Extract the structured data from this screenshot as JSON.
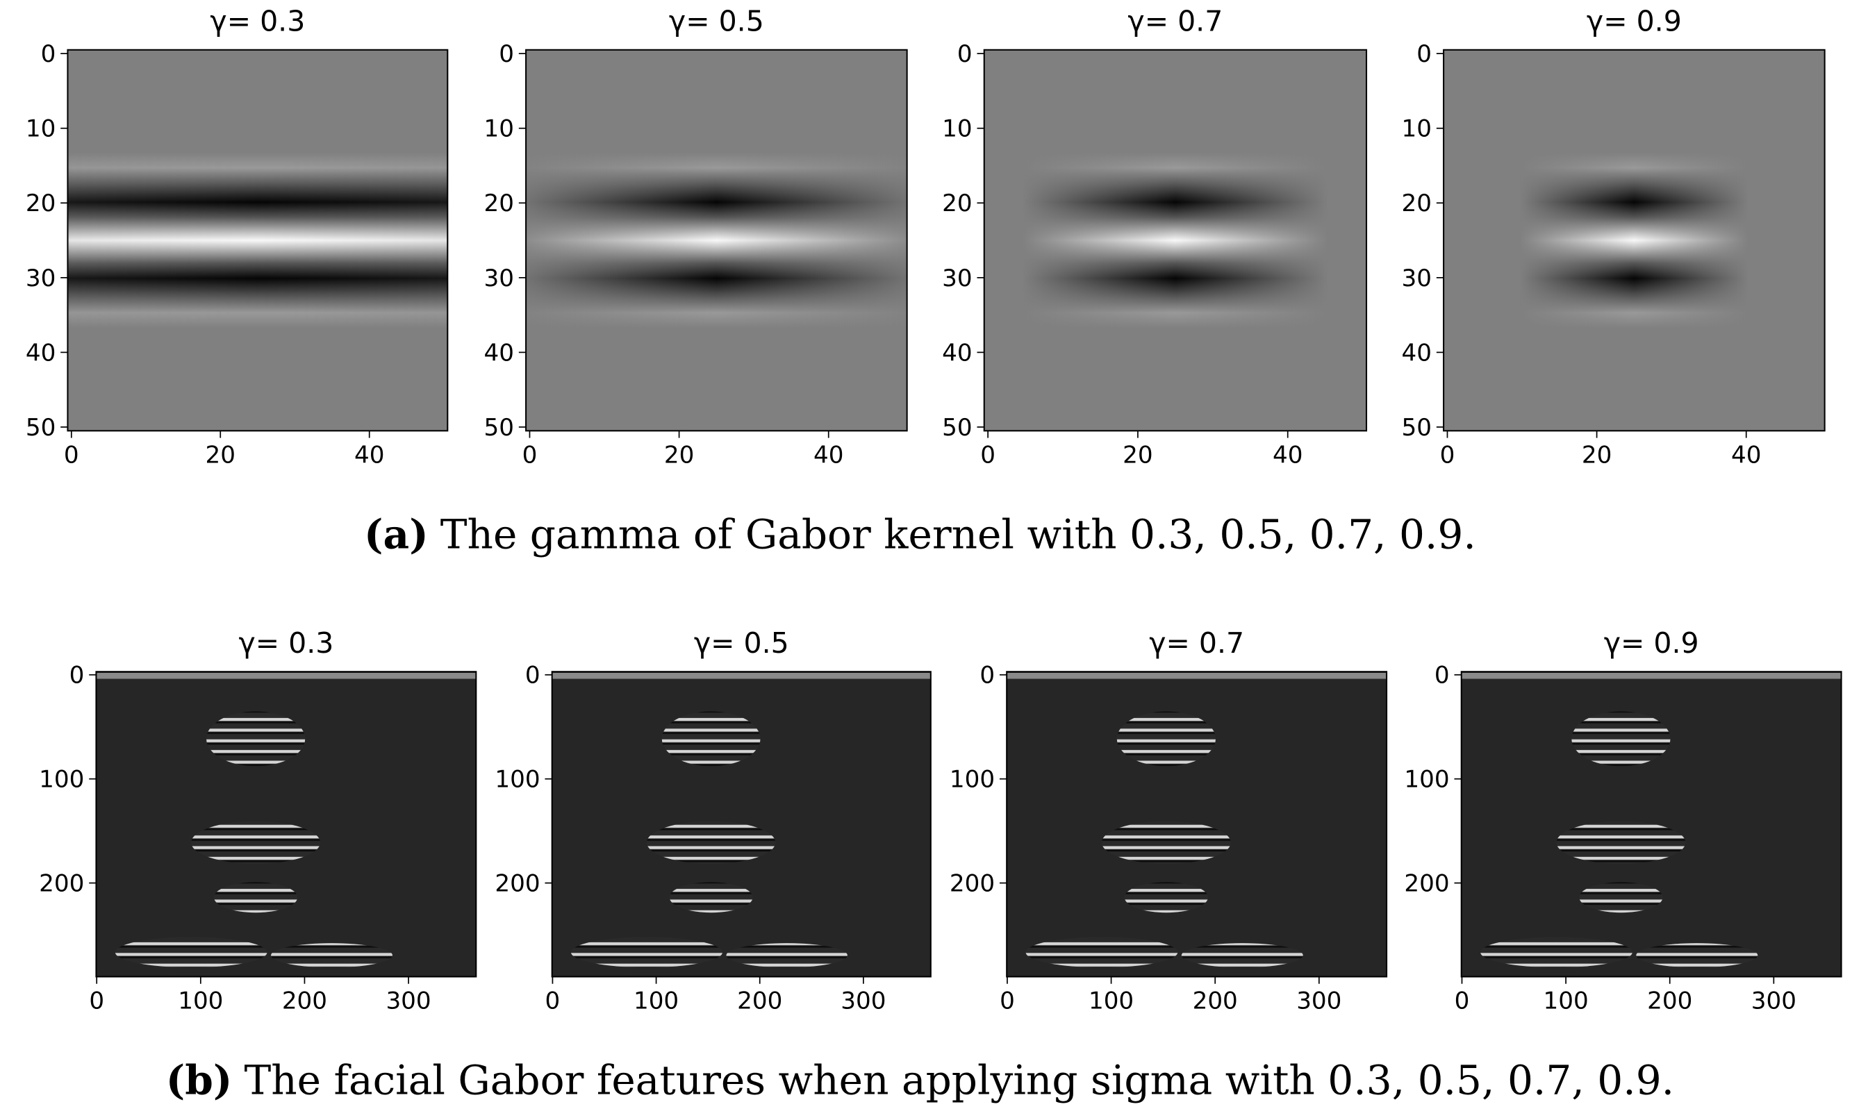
{
  "chart_data": [
    {
      "type": "image",
      "title": "γ= 0.3",
      "xlim": [
        -0.5,
        50.5
      ],
      "ylim": [
        50.5,
        -0.5
      ],
      "xticks": [
        0,
        20,
        40
      ],
      "yticks": [
        0,
        10,
        20,
        30,
        40,
        50
      ]
    },
    {
      "type": "image",
      "title": "γ= 0.5",
      "xlim": [
        -0.5,
        50.5
      ],
      "ylim": [
        50.5,
        -0.5
      ],
      "xticks": [
        0,
        20,
        40
      ],
      "yticks": [
        0,
        10,
        20,
        30,
        40,
        50
      ]
    },
    {
      "type": "image",
      "title": "γ= 0.7",
      "xlim": [
        -0.5,
        50.5
      ],
      "ylim": [
        50.5,
        -0.5
      ],
      "xticks": [
        0,
        20,
        40
      ],
      "yticks": [
        0,
        10,
        20,
        30,
        40,
        50
      ]
    },
    {
      "type": "image",
      "title": "γ= 0.9",
      "xlim": [
        -0.5,
        50.5
      ],
      "ylim": [
        50.5,
        -0.5
      ],
      "xticks": [
        0,
        20,
        40
      ],
      "yticks": [
        0,
        10,
        20,
        30,
        40,
        50
      ]
    },
    {
      "type": "image",
      "title": "γ= 0.3",
      "xlim": [
        -0.5,
        365
      ],
      "ylim": [
        290,
        -3
      ],
      "xticks": [
        0,
        100,
        200,
        300
      ],
      "yticks": [
        0,
        100,
        200
      ]
    },
    {
      "type": "image",
      "title": "γ= 0.5",
      "xlim": [
        -0.5,
        365
      ],
      "ylim": [
        290,
        -3
      ],
      "xticks": [
        0,
        100,
        200,
        300
      ],
      "yticks": [
        0,
        100,
        200
      ]
    },
    {
      "type": "image",
      "title": "γ= 0.7",
      "xlim": [
        -0.5,
        365
      ],
      "ylim": [
        290,
        -3
      ],
      "xticks": [
        0,
        100,
        200,
        300
      ],
      "yticks": [
        0,
        100,
        200
      ]
    },
    {
      "type": "image",
      "title": "γ= 0.9",
      "xlim": [
        -0.5,
        365
      ],
      "ylim": [
        290,
        -3
      ],
      "xticks": [
        0,
        100,
        200,
        300
      ],
      "yticks": [
        0,
        100,
        200
      ]
    }
  ],
  "captions": [
    {
      "label": "(a)",
      "text": "The gamma of Gabor kernel with 0.3, 0.5, 0.7, 0.9."
    },
    {
      "label": "(b)",
      "text": "The facial Gabor features when applying sigma with 0.3, 0.5, 0.7, 0.9."
    }
  ]
}
